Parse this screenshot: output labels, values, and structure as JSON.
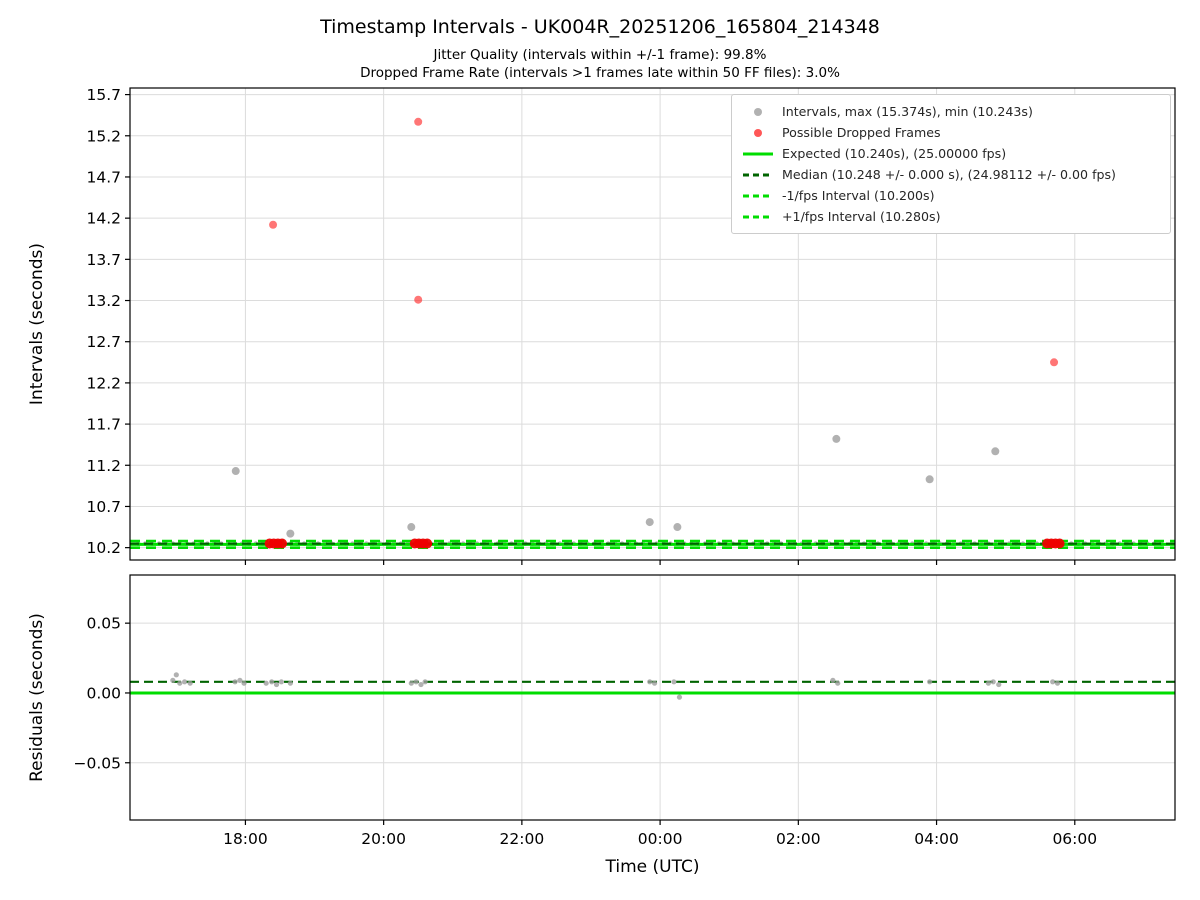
{
  "header": {
    "title": "Timestamp Intervals - UK004R_20251206_165804_214348",
    "subtitle_jitter": "Jitter Quality (intervals within +/-1 frame): 99.8%",
    "subtitle_dropped": "Dropped Frame Rate (intervals >1 frames late within 50 FF files): 3.0%"
  },
  "colors": {
    "gray_marker": "#9e9e9e",
    "red_marker": "#ff2d2d",
    "red_solid": "#ee0000",
    "expected_green": "#00dd00",
    "dark_green": "#006400",
    "grid": "#dcdcdc",
    "axis": "#000000"
  },
  "chart_data": [
    {
      "id": "intervals",
      "type": "scatter",
      "title": "Timestamp Intervals - UK004R_20251206_165804_214348",
      "ylabel": "Intervals (seconds)",
      "xlabel": "",
      "xlim": [
        16.33,
        31.45
      ],
      "ylim": [
        10.05,
        15.78
      ],
      "grid": true,
      "legend_position": "upper right",
      "yticks": [
        {
          "v": 10.2,
          "label": "10.2"
        },
        {
          "v": 10.7,
          "label": "10.7"
        },
        {
          "v": 11.2,
          "label": "11.2"
        },
        {
          "v": 11.7,
          "label": "11.7"
        },
        {
          "v": 12.2,
          "label": "12.2"
        },
        {
          "v": 12.7,
          "label": "12.7"
        },
        {
          "v": 13.2,
          "label": "13.2"
        },
        {
          "v": 13.7,
          "label": "13.7"
        },
        {
          "v": 14.2,
          "label": "14.2"
        },
        {
          "v": 14.7,
          "label": "14.7"
        },
        {
          "v": 15.2,
          "label": "15.2"
        },
        {
          "v": 15.7,
          "label": "15.7"
        }
      ],
      "xticks": [
        {
          "v": 18,
          "label": "18:00"
        },
        {
          "v": 20,
          "label": "20:00"
        },
        {
          "v": 22,
          "label": "22:00"
        },
        {
          "v": 24,
          "label": "00:00"
        },
        {
          "v": 26,
          "label": "02:00"
        },
        {
          "v": 28,
          "label": "04:00"
        },
        {
          "v": 30,
          "label": "06:00"
        }
      ],
      "lines": [
        {
          "name": "minus-1fps-interval",
          "y": 10.2,
          "color": "expected_green",
          "width": 2.6,
          "dash": "10,6"
        },
        {
          "name": "plus-1fps-interval",
          "y": 10.28,
          "color": "expected_green",
          "width": 2.6,
          "dash": "10,6"
        },
        {
          "name": "expected",
          "y": 10.24,
          "color": "expected_green",
          "width": 3,
          "dash": null
        },
        {
          "name": "median",
          "y": 10.248,
          "color": "dark_green",
          "width": 2.2,
          "dash": "9,5"
        }
      ],
      "baseline": {
        "y": 10.248,
        "x_start": 16.45,
        "x_end": 31.35,
        "step": 0.1,
        "r": 2.3,
        "color": "gray_marker"
      },
      "points": [
        [
          17.86,
          11.13
        ],
        [
          18.65,
          10.37
        ],
        [
          20.4,
          10.45
        ],
        [
          23.85,
          10.51
        ],
        [
          24.25,
          10.45
        ],
        [
          26.55,
          11.52
        ],
        [
          27.9,
          11.03
        ],
        [
          28.85,
          11.37
        ]
      ],
      "dropped_points": [
        [
          18.4,
          14.12
        ],
        [
          20.5,
          15.37
        ],
        [
          20.5,
          13.21
        ],
        [
          29.7,
          12.45
        ]
      ],
      "dropped_cluster_points": [
        [
          18.35,
          10.25
        ],
        [
          18.41,
          10.25
        ],
        [
          18.47,
          10.25
        ],
        [
          18.53,
          10.25
        ],
        [
          20.45,
          10.25
        ],
        [
          20.51,
          10.25
        ],
        [
          20.57,
          10.25
        ],
        [
          20.63,
          10.25
        ],
        [
          29.6,
          10.25
        ],
        [
          29.66,
          10.25
        ],
        [
          29.72,
          10.25
        ],
        [
          29.78,
          10.25
        ]
      ],
      "stats": {
        "max_interval_s": 15.374,
        "min_interval_s": 10.243,
        "expected_s": 10.24,
        "expected_fps": 25.0,
        "median_s": 10.248,
        "median_fps": 24.98112,
        "minus_1fps_interval_s": 10.2,
        "plus_1fps_interval_s": 10.28,
        "jitter_quality_pct": 99.8,
        "dropped_frame_rate_pct": 3.0
      },
      "legend": [
        {
          "marker": "dot",
          "color": "gray_marker",
          "dash": null,
          "label": "Intervals, max (15.374s), min (10.243s)"
        },
        {
          "marker": "dot",
          "color": "red_marker",
          "dash": null,
          "label": "Possible Dropped Frames"
        },
        {
          "marker": "line",
          "color": "expected_green",
          "dash": null,
          "label": "Expected (10.240s), (25.00000 fps)"
        },
        {
          "marker": "line",
          "color": "dark_green",
          "dash": "6,4",
          "label": "Median (10.248 +/- 0.000 s), (24.98112 +/- 0.00 fps)"
        },
        {
          "marker": "line",
          "color": "expected_green",
          "dash": "6,4",
          "label": "-1/fps Interval (10.200s)"
        },
        {
          "marker": "line",
          "color": "expected_green",
          "dash": "6,4",
          "label": "+1/fps Interval (10.280s)"
        }
      ]
    },
    {
      "id": "residuals",
      "type": "scatter",
      "ylabel": "Residuals (seconds)",
      "xlabel": "Time (UTC)",
      "xlim": [
        16.33,
        31.45
      ],
      "ylim": [
        -0.091,
        0.0845
      ],
      "grid": true,
      "yticks": [
        {
          "v": 0.05,
          "label": "0.05"
        },
        {
          "v": 0.0,
          "label": "0.00"
        },
        {
          "v": -0.05,
          "label": "−0.05"
        }
      ],
      "xticks": [
        {
          "v": 18,
          "label": "18:00"
        },
        {
          "v": 20,
          "label": "20:00"
        },
        {
          "v": 22,
          "label": "22:00"
        },
        {
          "v": 24,
          "label": "00:00"
        },
        {
          "v": 26,
          "label": "02:00"
        },
        {
          "v": 28,
          "label": "04:00"
        },
        {
          "v": 30,
          "label": "06:00"
        }
      ],
      "lines": [
        {
          "name": "zero-expected",
          "y": 0.0,
          "color": "expected_green",
          "width": 3,
          "dash": null
        },
        {
          "name": "median",
          "y": 0.008,
          "color": "dark_green",
          "width": 2.2,
          "dash": "9,5"
        }
      ],
      "points": [
        [
          16.95,
          0.009
        ],
        [
          17.0,
          0.013
        ],
        [
          17.05,
          0.007
        ],
        [
          17.12,
          0.008
        ],
        [
          17.2,
          0.007
        ],
        [
          17.85,
          0.008
        ],
        [
          17.92,
          0.009
        ],
        [
          17.98,
          0.007
        ],
        [
          18.3,
          0.007
        ],
        [
          18.38,
          0.008
        ],
        [
          18.45,
          0.006
        ],
        [
          18.52,
          0.008
        ],
        [
          18.65,
          0.007
        ],
        [
          20.4,
          0.007
        ],
        [
          20.47,
          0.008
        ],
        [
          20.54,
          0.006
        ],
        [
          20.6,
          0.008
        ],
        [
          23.85,
          0.008
        ],
        [
          23.92,
          0.007
        ],
        [
          24.2,
          0.008
        ],
        [
          24.28,
          -0.003
        ],
        [
          26.5,
          0.009
        ],
        [
          26.57,
          0.007
        ],
        [
          27.9,
          0.008
        ],
        [
          28.75,
          0.007
        ],
        [
          28.82,
          0.008
        ],
        [
          28.9,
          0.006
        ],
        [
          29.68,
          0.008
        ],
        [
          29.75,
          0.007
        ]
      ]
    }
  ]
}
